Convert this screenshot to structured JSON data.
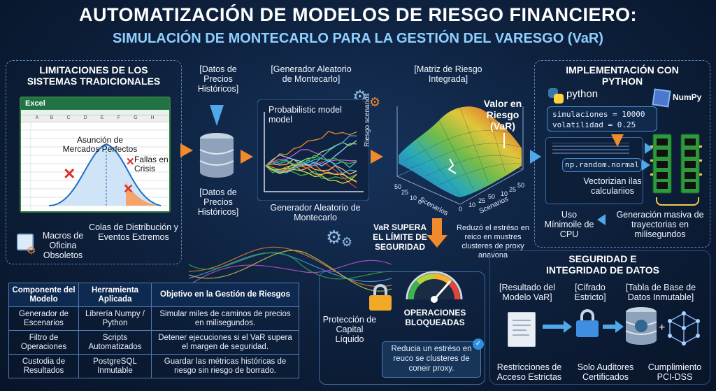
{
  "title": "AUTOMATIZACIÓN DE MODELOS DE RIESGO FINANCIERO:",
  "subtitle": "SIMULACIÓN DE MONTECARLO PARA LA GESTIÓN DEL VARESGO (VaR)",
  "limitations": {
    "heading": "LIMITACIONES DE LOS SISTEMAS TRADICIONALES",
    "excel_label": "Excel",
    "col_letters": [
      "A",
      "B",
      "C",
      "D",
      "E",
      "F",
      "G",
      "H"
    ],
    "assumption": "Asunción de Mercados Perfectos",
    "crisis": "Fallas en Crisis",
    "macros": "Macros de Oficina Obsoletos",
    "tails": "Colas de Distribución y Eventos Extremos"
  },
  "data_source": {
    "top_label": "[Datos de Precios Históricos]",
    "bottom_label": "[Datos de Precios Históricos]"
  },
  "generator": {
    "top_label": "[Generador Aleatorio de Montecarlo]",
    "chart_label": "Probabilistic model model",
    "bottom_label": "Generador Aleatorio de Montecarlo"
  },
  "risk_matrix": {
    "top_label": "[Matriz de Riesgo Integrada]",
    "var_label": "Valor en Riesgo (VaR)",
    "axis_y": "Riesgo scenarios",
    "axis_x1": "Scenarios",
    "axis_x2": "Scenarios",
    "ticks_left": [
      "50",
      "25",
      "10",
      "0"
    ],
    "ticks_mid": [
      "0",
      "10",
      "25",
      "50"
    ],
    "ticks_right": [
      "10",
      "25",
      "50"
    ]
  },
  "implementation": {
    "heading": "IMPLEMENTACIÓN CON PYTHON",
    "python": "python",
    "numpy": "NumPy",
    "code_line1": "simulaciones = 10000",
    "code_line2": "volatilidad = 0.25",
    "code_call": "np.random.normal",
    "vectorize": "Vectorizian ilas calculariios",
    "cpu": "Uso Mínimoile de CPU",
    "mass": "Generación masiva de trayectorias en milisegundos"
  },
  "safety": {
    "var_exceeds": "VaR SUPERA EL LÍMITE DE SEGURIDAD",
    "note_top": "Reduzó el estréso en reico en mustres clusteres de proxy anavona",
    "protection": "Protección de Capital Líquido",
    "blocked": "OPERACIONES BLOQUEADAS",
    "note_bottom": "Reducia un estréso en reuco se clusteres de coneir proxy."
  },
  "security": {
    "heading": "SEGURIDAD E INTEGRIDAD DE DATOS",
    "label1": "[Resultado del Modelo VaR]",
    "label2": "[Cifrado Estricto]",
    "label3": "[Tabla de Base de Datos Inmutable]",
    "bottom1": "Restricciones de Acceso Estrictas",
    "bottom2": "Solo Auditores Certificados",
    "bottom3": "Cumplimiento PCI-DSS"
  },
  "table": {
    "headers": [
      "Componente del Modelo",
      "Herramienta Aplicada",
      "Objetivo en la Gestión de Riesgos"
    ],
    "rows": [
      [
        "Generador de Escenarios",
        "Librería Numpy / Python",
        "Simular miles de caminos de precios en milisegundos."
      ],
      [
        "Filtro de Operaciones",
        "Scripts Automatizados",
        "Detener ejecuciones si el VaR supera el margen de seguridad."
      ],
      [
        "Custodia de Resultados",
        "PostgreSQL Inmutable",
        "Guardar las métricas históricas de riesgo sin riesgo de borrado."
      ]
    ]
  },
  "colors": {
    "accent": "#f08a2c",
    "blue": "#4fa8e8",
    "bg": "#0d1f3a",
    "green": "#3cb44a",
    "red": "#e0443a"
  }
}
